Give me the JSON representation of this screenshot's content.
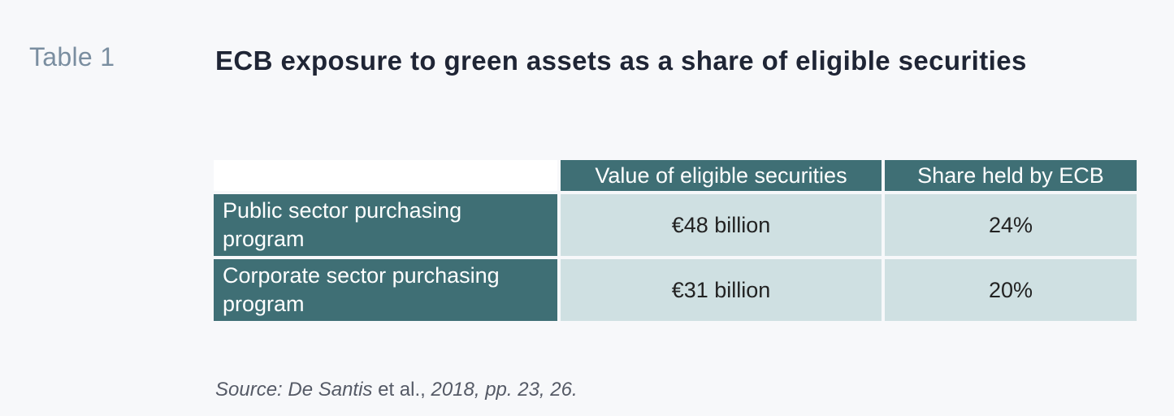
{
  "table_label": "Table 1",
  "title": "ECB exposure to green assets as a share of eligible securities",
  "table": {
    "columns": [
      "Value of eligible securities",
      "Share held by ECB"
    ],
    "rows": [
      {
        "label_line1": "Public sector purchasing",
        "label_line2": "program",
        "values": [
          "€48 billion",
          "24%"
        ]
      },
      {
        "label_line1": "Corporate sector purchasing",
        "label_line2": "program",
        "values": [
          "€31 billion",
          "20%"
        ]
      }
    ]
  },
  "source": {
    "prefix": "Source: De Santis",
    "middle": " et al.,",
    "suffix": " 2018,  pp. 23, 26."
  },
  "colors": {
    "header_bg": "#3f6f75",
    "cell_bg": "#cfe0e2",
    "title": "#1f2535",
    "label": "#7a8ea0"
  }
}
